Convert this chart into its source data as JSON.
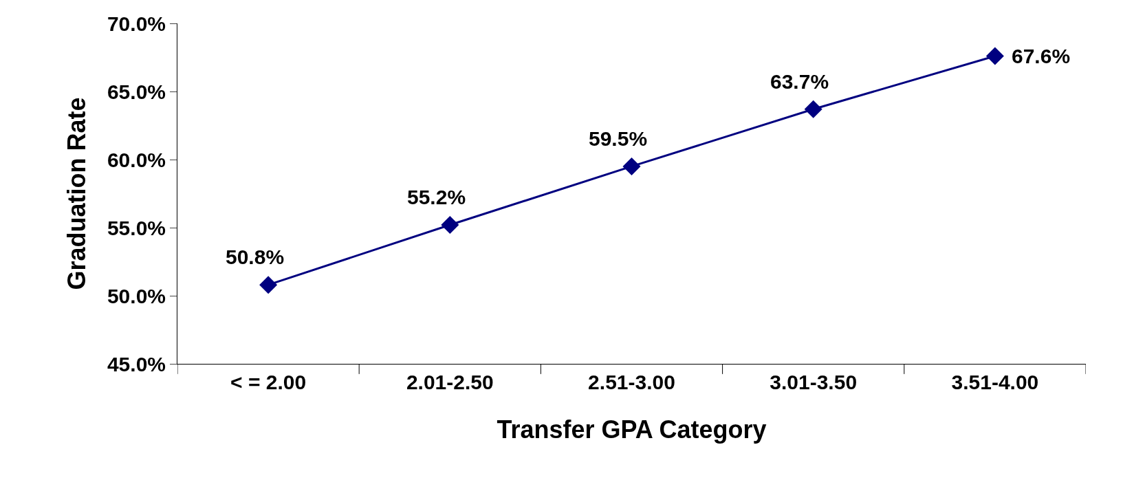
{
  "chart_data": {
    "type": "line",
    "xlabel": "Transfer GPA Category",
    "ylabel": "Graduation Rate",
    "categories": [
      "< = 2.00",
      "2.01-2.50",
      "2.51-3.00",
      "3.01-3.50",
      "3.51-4.00"
    ],
    "series": [
      {
        "color": "#000080",
        "values": [
          50.8,
          55.2,
          59.5,
          63.7,
          67.6
        ],
        "value_labels": [
          "50.8%",
          "55.2%",
          "59.5%",
          "63.7%",
          "67.6%"
        ]
      }
    ],
    "ylim": [
      45,
      70
    ],
    "yticks": [
      {
        "value": 45,
        "label": "45.0%"
      },
      {
        "value": 50,
        "label": "50.0%"
      },
      {
        "value": 55,
        "label": "55.0%"
      },
      {
        "value": 60,
        "label": "60.0%"
      },
      {
        "value": 65,
        "label": "65.0%"
      },
      {
        "value": 70,
        "label": "70.0%"
      }
    ],
    "marker": "diamond",
    "line_style": "solid"
  }
}
